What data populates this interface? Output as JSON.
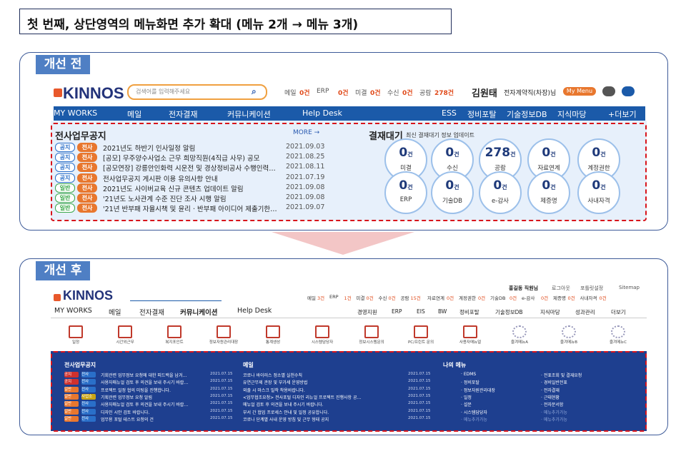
{
  "heading": "첫 번째, 상단영역의 메뉴화면 추가 확대 (메뉴 2개 → 메뉴 3개)",
  "before": {
    "label": "개선 전",
    "logo": "KINNOS",
    "search": "검색어를 입력해주세요",
    "status": [
      {
        "label": "메일",
        "count": "0건"
      },
      {
        "label": "ERP",
        "count": "0건"
      },
      {
        "label": "미결",
        "count": "0건"
      },
      {
        "label": "수신",
        "count": "0건"
      },
      {
        "label": "공람",
        "count": "278건"
      }
    ],
    "user_name": "김원태",
    "user_role": "전자계약직(차장)님",
    "my_menu": "My Menu",
    "nav_left": [
      "MY WORKS",
      "메일",
      "전자결재",
      "커뮤니케이션",
      "Help Desk"
    ],
    "nav_right": [
      "ESS",
      "정비포탈",
      "기술정보DB",
      "지식마당",
      "+더보기"
    ],
    "notice": {
      "title": "전사업무공지",
      "more": "MORE →",
      "rows": [
        {
          "badges": [
            {
              "text": "공지",
              "color": "#2a6fc9"
            },
            {
              "text": "전사",
              "color": "#e8772e"
            }
          ],
          "title": "2021년도 하반기 인사일정 알림",
          "date": "2021.09.03"
        },
        {
          "badges": [
            {
              "text": "공지",
              "color": "#2a6fc9"
            },
            {
              "text": "전사",
              "color": "#e8772e"
            }
          ],
          "title": "[공모] 무주양수사업소 근무 희망직원(4직급 사무) 공모",
          "date": "2021.08.25"
        },
        {
          "badges": [
            {
              "text": "공지",
              "color": "#2a6fc9"
            },
            {
              "text": "전사",
              "color": "#e8772e"
            }
          ],
          "title": "[공모연장] 강릉안인화력 시운전 및 경상정비공사 수행인력…",
          "date": "2021.08.11"
        },
        {
          "badges": [
            {
              "text": "공지",
              "color": "#2a6fc9"
            },
            {
              "text": "전사",
              "color": "#e8772e"
            }
          ],
          "title": "전사업무공지 게시판 이용 유의사항 안내",
          "date": "2021.07.19"
        },
        {
          "badges": [
            {
              "text": "일반",
              "color": "#3aa84a"
            },
            {
              "text": "전사",
              "color": "#e8772e"
            }
          ],
          "title": "2021년도 사이버교육 신규 콘텐츠 업데이트 알림",
          "date": "2021.09.08"
        },
        {
          "badges": [
            {
              "text": "일반",
              "color": "#3aa84a"
            },
            {
              "text": "전사",
              "color": "#e8772e"
            }
          ],
          "title": "'21년도 노사관계 수준 진단 조사 시행 알림",
          "date": "2021.09.08"
        },
        {
          "badges": [
            {
              "text": "일반",
              "color": "#3aa84a"
            },
            {
              "text": "전사",
              "color": "#e8772e"
            }
          ],
          "title": "'21년 반부패 자율시책 및 윤리 · 반부패 아이디어 제출기한…",
          "date": "2021.09.07"
        }
      ]
    },
    "approval": {
      "title": "결재대기",
      "subtitle": "최신 결재대기 정보 업데이트",
      "items": [
        {
          "count": "0",
          "unit": "건",
          "label": "미결"
        },
        {
          "count": "0",
          "unit": "건",
          "label": "수신"
        },
        {
          "count": "278",
          "unit": "건",
          "label": "공람"
        },
        {
          "count": "0",
          "unit": "건",
          "label": "자료연계"
        },
        {
          "count": "0",
          "unit": "건",
          "label": "계정권한"
        },
        {
          "count": "0",
          "unit": "건",
          "label": "ERP"
        },
        {
          "count": "0",
          "unit": "건",
          "label": "기술DB"
        },
        {
          "count": "0",
          "unit": "건",
          "label": "e-감사"
        },
        {
          "count": "0",
          "unit": "건",
          "label": "제증명"
        },
        {
          "count": "0",
          "unit": "건",
          "label": "사내자격"
        }
      ]
    }
  },
  "after": {
    "label": "개선 후",
    "logo": "KINNOS",
    "top_links": [
      "홍길동 직원님",
      "로그아웃",
      "포틀릿설정",
      "Sitemap"
    ],
    "status": [
      {
        "label": "메일",
        "count": "3건"
      },
      {
        "label": "ERP",
        "count": "1건"
      },
      {
        "label": "미결",
        "count": "0건"
      },
      {
        "label": "수신",
        "count": "0건"
      },
      {
        "label": "공람",
        "count": "15건"
      },
      {
        "label": "자료연계",
        "count": "0건"
      },
      {
        "label": "계정권한",
        "count": "0건"
      },
      {
        "label": "기술DB",
        "count": "0건"
      },
      {
        "label": "e-감사",
        "count": "0건"
      },
      {
        "label": "제증명",
        "count": "0건"
      },
      {
        "label": "사내자격",
        "count": "0건"
      }
    ],
    "nav_left": [
      "MY WORKS",
      "메일",
      "전자결재",
      "커뮤니케이션",
      "Help Desk"
    ],
    "nav_right": [
      "경영지원",
      "ERP",
      "EIS",
      "BW",
      "정비포탈",
      "기술정보DB",
      "지식마당",
      "성과관리",
      "더보기"
    ],
    "icons": [
      "일정",
      "시간외근무",
      "복지포인트",
      "정보자원관리대장",
      "통계생성",
      "시스템담당자",
      "정보시스템문의",
      "PC/프린트 문의",
      "사용자매뉴얼",
      "즐겨메뉴A",
      "즐겨메뉴B",
      "즐겨메뉴C"
    ],
    "notice": {
      "title": "전사업무공지",
      "rows": [
        {
          "badges": [
            {
              "text": "공지",
              "color": "#d0312d"
            },
            {
              "text": "전사",
              "color": "#2a6fc9"
            }
          ],
          "title": "기회관련 업무정보 요청에 대한 피드백을 남겨…",
          "date": "2021.07.15"
        },
        {
          "badges": [
            {
              "text": "공지",
              "color": "#d0312d"
            },
            {
              "text": "전사",
              "color": "#2a6fc9"
            }
          ],
          "title": "사용자매뉴얼 검토 후 의견을 보내 주시기 바랍…",
          "date": "2021.07.15"
        },
        {
          "badges": [
            {
              "text": "일반",
              "color": "#e8772e"
            },
            {
              "text": "전사",
              "color": "#2a6fc9"
            }
          ],
          "title": "프로젝트 일정 협의 미팅을 진행합니다.",
          "date": "2021.07.15"
        },
        {
          "badges": [
            {
              "text": "일반",
              "color": "#e8772e"
            },
            {
              "text": "사업소",
              "color": "#c8a415"
            }
          ],
          "title": "기획관련 업무정보 요청 알림",
          "date": "2021.07.15"
        },
        {
          "badges": [
            {
              "text": "일반",
              "color": "#e8772e"
            },
            {
              "text": "전사",
              "color": "#2a6fc9"
            }
          ],
          "title": "사용자매뉴얼 검토 후 의견을 보내 주시기 바랍…",
          "date": "2021.07.15"
        },
        {
          "badges": [
            {
              "text": "일반",
              "color": "#e8772e"
            },
            {
              "text": "전사",
              "color": "#2a6fc9"
            }
          ],
          "title": "디자인 시안 검토 바랍니다.",
          "date": "2021.07.15"
        },
        {
          "badges": [
            {
              "text": "일반",
              "color": "#e8772e"
            },
            {
              "text": "전사",
              "color": "#2a6fc9"
            }
          ],
          "title": "업무용 포털 테스트 요청의 건",
          "date": "2021.07.15"
        }
      ]
    },
    "mail": {
      "title": "메일",
      "rows": [
        {
          "title": "코로나 바이러스 정소별 실천수칙",
          "date": "2021.07.15"
        },
        {
          "title": "유연근무제 관장 및 부가세 운영방법",
          "date": "2021.07.15"
        },
        {
          "title": "외출 시 마스크 밀착 착용바랍니다.",
          "date": "2021.07.15"
        },
        {
          "title": "<업무협조요청> 전사포털 디자인 리뉴얼 프로젝트 진행사항 공…",
          "date": "2021.07.15"
        },
        {
          "title": "메뉴얼 검토 후 의견을 보내 주시기 바랍니다.",
          "date": "2021.07.15"
        },
        {
          "title": "부서 간 협업 프로세스 안내 및 일정 공유합니다.",
          "date": "2021.07.15"
        },
        {
          "title": "코로나 단계별 사내 운영 방침 및 근무 형태 공지",
          "date": "2021.07.15"
        }
      ]
    },
    "mymenu": {
      "title": "나의 메뉴",
      "left": [
        "· EDMS",
        "· 정비포탈",
        "· 정보자원관리대장",
        "· 일정",
        "· 설문",
        "· 시스템담당자",
        "· 메뉴추가가능"
      ],
      "right": [
        "· 전표조회 및 결재요청",
        "· 경비일반전표",
        "· 전자결재",
        "· 근태현황",
        "· 전자문서함",
        "· 메뉴추가가능",
        "· 메뉴추가가능"
      ]
    }
  }
}
